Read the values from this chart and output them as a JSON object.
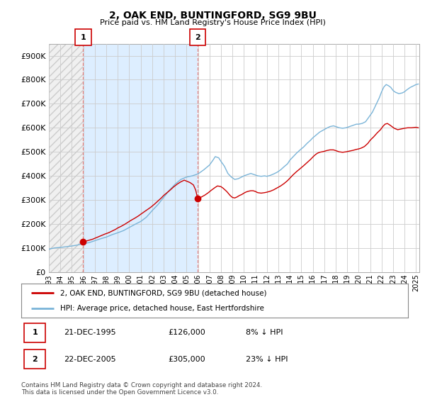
{
  "title": "2, OAK END, BUNTINGFORD, SG9 9BU",
  "subtitle": "Price paid vs. HM Land Registry's House Price Index (HPI)",
  "ytick_values": [
    0,
    100000,
    200000,
    300000,
    400000,
    500000,
    600000,
    700000,
    800000,
    900000
  ],
  "ylim": [
    0,
    950000
  ],
  "xlim_start": 1993.0,
  "xlim_end": 2025.3,
  "hpi_color": "#7ab4d8",
  "price_color": "#cc0000",
  "purchase1_x": 1995.97,
  "purchase1_y": 126000,
  "purchase1_label": "1",
  "purchase2_x": 2005.97,
  "purchase2_y": 305000,
  "purchase2_label": "2",
  "vline_color": "#e88080",
  "bg_between_color": "#ddeeff",
  "bg_hatch_color": "#cccccc",
  "legend_line1": "2, OAK END, BUNTINGFORD, SG9 9BU (detached house)",
  "legend_line2": "HPI: Average price, detached house, East Hertfordshire",
  "table_row1": [
    "1",
    "21-DEC-1995",
    "£126,000",
    "8% ↓ HPI"
  ],
  "table_row2": [
    "2",
    "22-DEC-2005",
    "£305,000",
    "23% ↓ HPI"
  ],
  "footnote": "Contains HM Land Registry data © Crown copyright and database right 2024.\nThis data is licensed under the Open Government Licence v3.0."
}
